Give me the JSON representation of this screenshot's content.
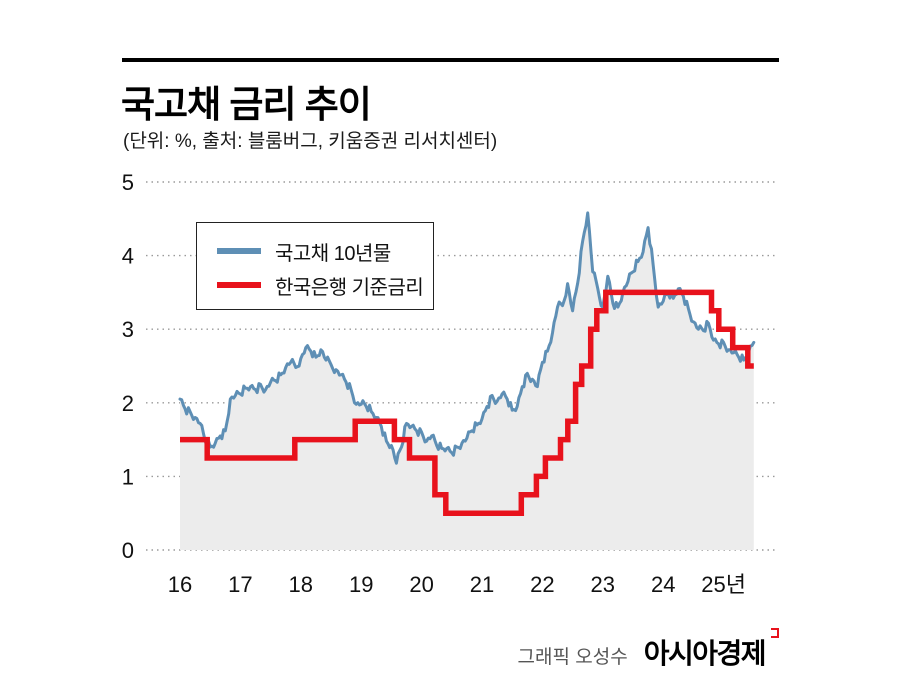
{
  "header": {
    "title": "국고채 금리 추이",
    "subtitle": "(단위: %, 출처: 블룸버그, 키움증권 리서치센터)"
  },
  "chart_data": {
    "type": "line",
    "title": "국고채 금리 추이",
    "subtitle": "(단위: %, 출처: 블룸버그, 키움증권 리서치센터)",
    "ylabel": "%",
    "ylim": [
      0,
      5
    ],
    "yticks": [
      0,
      1,
      2,
      3,
      4,
      5
    ],
    "xticks": [
      {
        "t": 2016,
        "label": "16"
      },
      {
        "t": 2017,
        "label": "17"
      },
      {
        "t": 2018,
        "label": "18"
      },
      {
        "t": 2019,
        "label": "19"
      },
      {
        "t": 2020,
        "label": "20"
      },
      {
        "t": 2021,
        "label": "21"
      },
      {
        "t": 2022,
        "label": "22"
      },
      {
        "t": 2023,
        "label": "23"
      },
      {
        "t": 2024,
        "label": "24"
      },
      {
        "t": 2025,
        "label": "25년"
      }
    ],
    "x_range": [
      2016.0,
      2025.5
    ],
    "grid": "dotted-horizontal",
    "grid_color": "#9a9a9a",
    "legend_position": "top-left-inside",
    "series": [
      {
        "name": "국고채 10년물",
        "type": "line",
        "color": "#5e8fb5",
        "fill": "#ececec",
        "x_start": 2016.0,
        "x_step": 0.0833333,
        "values": [
          2.05,
          1.92,
          1.88,
          1.8,
          1.72,
          1.48,
          1.4,
          1.45,
          1.55,
          1.62,
          2.05,
          2.1,
          2.12,
          2.2,
          2.22,
          2.18,
          2.25,
          2.18,
          2.28,
          2.3,
          2.38,
          2.48,
          2.55,
          2.48,
          2.6,
          2.75,
          2.7,
          2.62,
          2.72,
          2.58,
          2.52,
          2.45,
          2.38,
          2.28,
          2.18,
          1.98,
          1.98,
          1.95,
          1.88,
          1.8,
          1.68,
          1.48,
          1.42,
          1.18,
          1.4,
          1.72,
          1.68,
          1.62,
          1.6,
          1.48,
          1.55,
          1.42,
          1.38,
          1.38,
          1.32,
          1.4,
          1.45,
          1.52,
          1.62,
          1.7,
          1.78,
          1.95,
          2.1,
          2.02,
          2.12,
          2.05,
          1.9,
          1.95,
          2.22,
          2.4,
          2.32,
          2.22,
          2.55,
          2.7,
          2.95,
          3.3,
          3.32,
          3.62,
          3.25,
          3.62,
          4.2,
          4.58,
          3.78,
          3.55,
          3.3,
          3.72,
          3.35,
          3.3,
          3.5,
          3.65,
          3.78,
          3.92,
          4.05,
          4.38,
          3.88,
          3.3,
          3.38,
          3.48,
          3.42,
          3.55,
          3.45,
          3.28,
          3.1,
          3.0,
          2.98,
          3.08,
          2.85,
          2.8,
          2.82,
          2.72,
          2.68,
          2.62,
          2.58,
          2.7,
          2.82
        ]
      },
      {
        "name": "한국은행 기준금리",
        "type": "step",
        "color": "#e8121c",
        "points": [
          [
            2016.0,
            1.5
          ],
          [
            2016.45,
            1.25
          ],
          [
            2017.9,
            1.5
          ],
          [
            2018.9,
            1.75
          ],
          [
            2019.55,
            1.5
          ],
          [
            2019.8,
            1.25
          ],
          [
            2020.22,
            0.75
          ],
          [
            2020.4,
            0.5
          ],
          [
            2021.65,
            0.75
          ],
          [
            2021.9,
            1.0
          ],
          [
            2022.05,
            1.25
          ],
          [
            2022.3,
            1.5
          ],
          [
            2022.42,
            1.75
          ],
          [
            2022.55,
            2.25
          ],
          [
            2022.65,
            2.5
          ],
          [
            2022.8,
            3.0
          ],
          [
            2022.9,
            3.25
          ],
          [
            2023.05,
            3.5
          ],
          [
            2024.8,
            3.25
          ],
          [
            2024.92,
            3.0
          ],
          [
            2025.15,
            2.75
          ],
          [
            2025.4,
            2.5
          ],
          [
            2025.5,
            2.5
          ]
        ]
      }
    ]
  },
  "footer": {
    "credit": "그래픽 오성수",
    "brand": "아시아경제",
    "brand_mark_color": "#e8121c"
  }
}
